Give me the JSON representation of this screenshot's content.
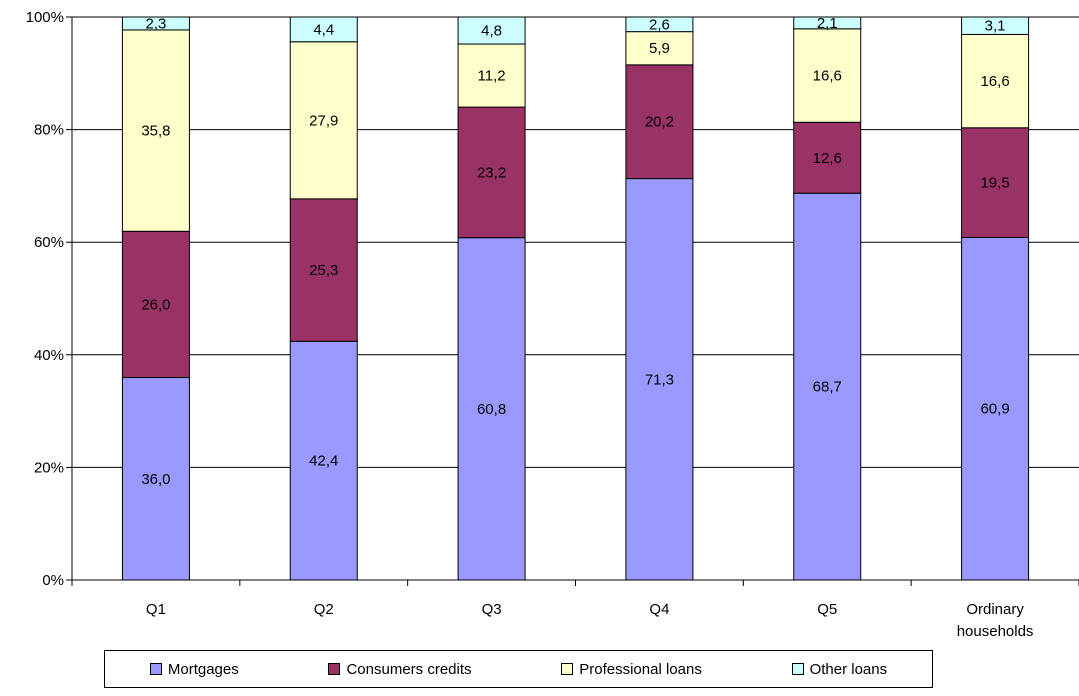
{
  "chart_data": {
    "type": "bar",
    "stacked": true,
    "percent_stacked": true,
    "categories": [
      "Q1",
      "Q2",
      "Q3",
      "Q4",
      "Q5",
      "Ordinary households"
    ],
    "category_lines": [
      [
        "Q1"
      ],
      [
        "Q2"
      ],
      [
        "Q3"
      ],
      [
        "Q4"
      ],
      [
        "Q5"
      ],
      [
        "Ordinary",
        "households"
      ]
    ],
    "series": [
      {
        "name": "Mortgages",
        "color": "#9999ff",
        "values": [
          36.0,
          42.4,
          60.8,
          71.3,
          68.7,
          60.9
        ],
        "labels": [
          "36,0",
          "42,4",
          "60,8",
          "71,3",
          "68,7",
          "60,9"
        ]
      },
      {
        "name": "Consumers credits",
        "color": "#993366",
        "values": [
          26.0,
          25.3,
          23.2,
          20.2,
          12.6,
          19.5
        ],
        "labels": [
          "26,0",
          "25,3",
          "23,2",
          "20,2",
          "12,6",
          "19,5"
        ]
      },
      {
        "name": "Professional loans",
        "color": "#ffffcc",
        "values": [
          35.8,
          27.9,
          11.2,
          5.9,
          16.6,
          16.6
        ],
        "labels": [
          "35,8",
          "27,9",
          "11,2",
          "5,9",
          "16,6",
          "16,6"
        ]
      },
      {
        "name": "Other loans",
        "color": "#ccffff",
        "values": [
          2.3,
          4.4,
          4.8,
          2.6,
          2.1,
          3.1
        ],
        "labels": [
          "2,3",
          "4,4",
          "4,8",
          "2,6",
          "2,1",
          "3,1"
        ]
      }
    ],
    "y_ticks": [
      "0%",
      "20%",
      "40%",
      "60%",
      "80%",
      "100%"
    ],
    "ylim": [
      0,
      100
    ],
    "grid": true,
    "legend_position": "bottom"
  }
}
